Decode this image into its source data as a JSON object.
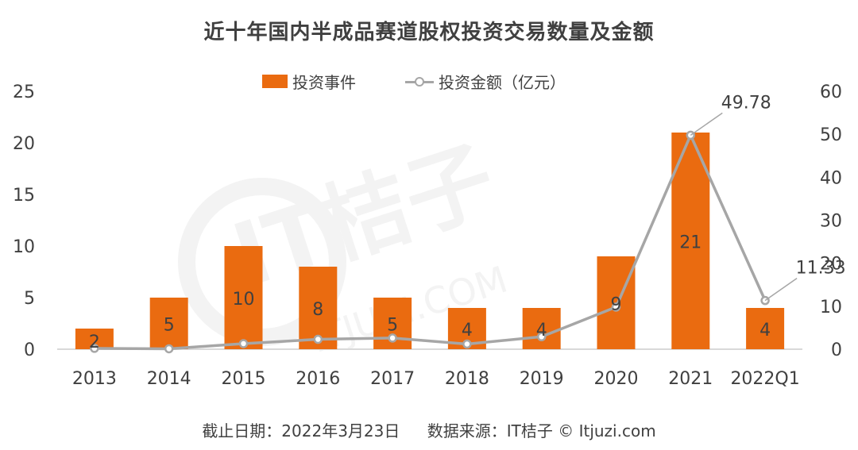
{
  "title": "近十年国内半成品赛道股权投资交易数量及金额",
  "footer": {
    "date": "截止日期：2022年3月23日",
    "source": "数据来源：IT桔子 © Itjuzi.com"
  },
  "watermark": {
    "brand": "IT桔子",
    "site": "ITJUZI.COM"
  },
  "colors": {
    "bar": "#ea6b10",
    "line": "#a6a6a6",
    "text": "#404040",
    "axis": "#d9d9d9"
  },
  "chart_data": {
    "type": "bar",
    "categories": [
      "2013",
      "2014",
      "2015",
      "2016",
      "2017",
      "2018",
      "2019",
      "2020",
      "2021",
      "2022Q1"
    ],
    "series": [
      {
        "name": "投资事件",
        "type": "bar",
        "axis": "left",
        "values": [
          2,
          5,
          10,
          8,
          5,
          4,
          4,
          9,
          21,
          4
        ],
        "labels": [
          "2",
          "5",
          "10",
          "8",
          "5",
          "4",
          "4",
          "9",
          "21",
          "4"
        ]
      },
      {
        "name": "投资金额（亿元）",
        "type": "line",
        "axis": "right",
        "values": [
          0.2,
          0.1,
          1.3,
          2.3,
          2.6,
          1.2,
          2.9,
          9.8,
          49.78,
          11.33
        ],
        "labels": [
          "",
          "",
          "",
          "",
          "",
          "",
          "",
          "",
          "49.78",
          "11.33"
        ]
      }
    ],
    "y_left": {
      "min": 0,
      "max": 25,
      "ticks": [
        "0",
        "5",
        "10",
        "15",
        "20",
        "25"
      ]
    },
    "y_right": {
      "min": 0,
      "max": 60,
      "ticks": [
        "0",
        "10",
        "20",
        "30",
        "40",
        "50",
        "60"
      ]
    },
    "legend": "top-center",
    "grid": false
  }
}
